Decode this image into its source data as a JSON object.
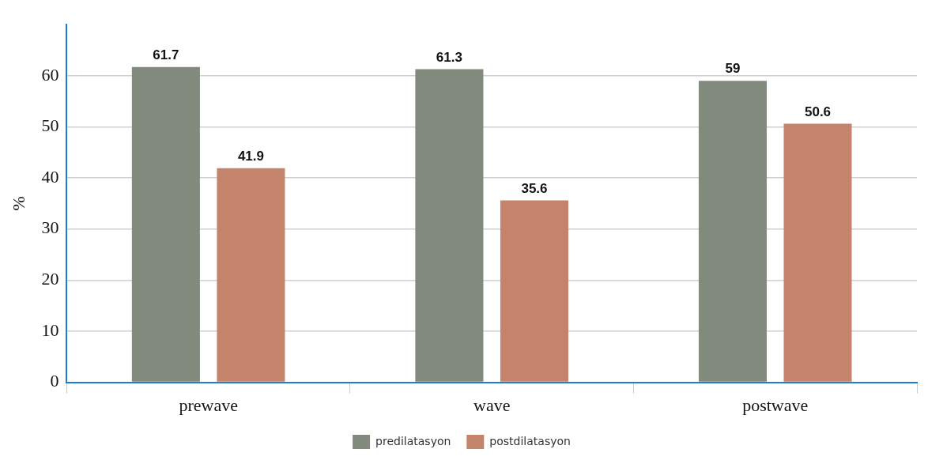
{
  "chart_data": {
    "type": "bar",
    "ylabel": "%",
    "categories": [
      "prewave",
      "wave",
      "postwave"
    ],
    "series": [
      {
        "name": "predilatasyon",
        "color": "#828a7e",
        "values": [
          61.7,
          61.3,
          59
        ]
      },
      {
        "name": "postdilatasyon",
        "color": "#c4846c",
        "values": [
          41.9,
          35.6,
          50.6
        ]
      }
    ],
    "ylim": [
      0,
      70
    ],
    "yticks": [
      0,
      10,
      20,
      30,
      40,
      50,
      60
    ],
    "grid": "y",
    "legend": "bottom",
    "data_labels": true
  }
}
